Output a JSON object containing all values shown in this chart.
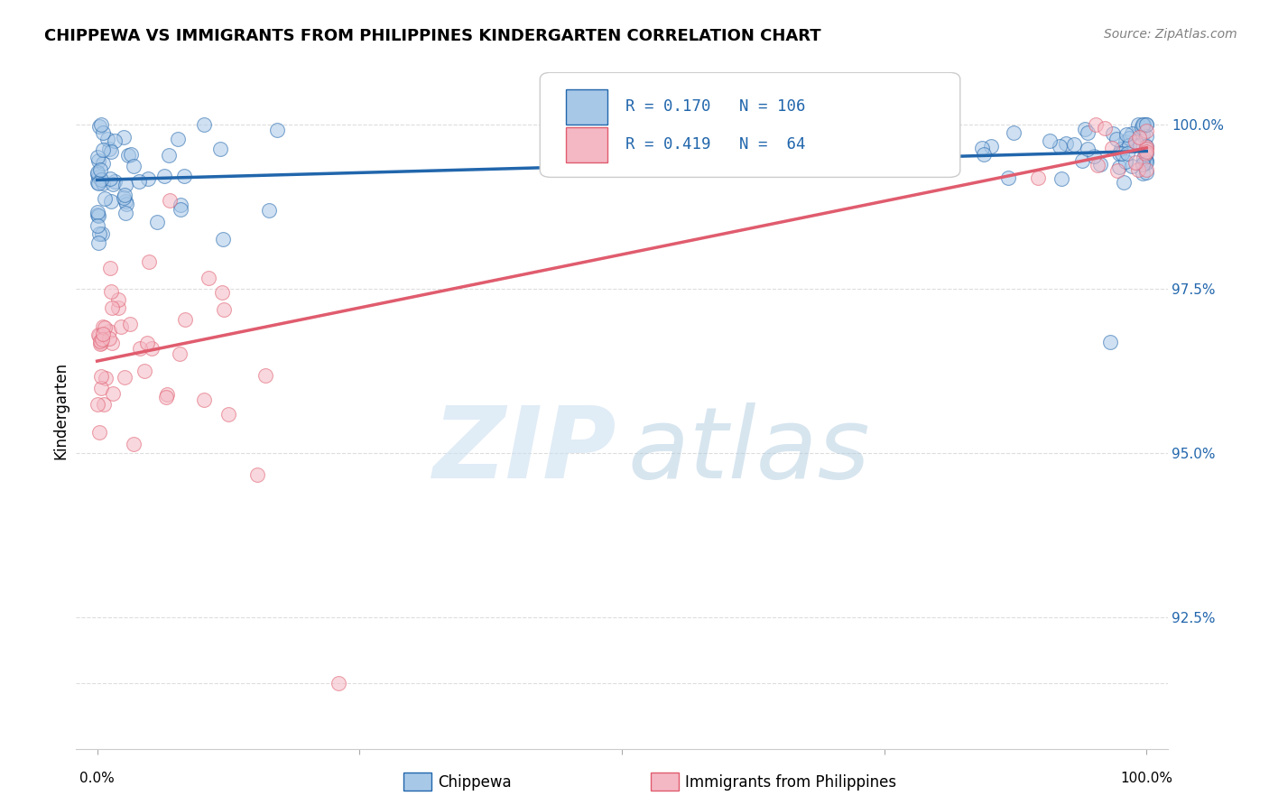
{
  "title": "CHIPPEWA VS IMMIGRANTS FROM PHILIPPINES KINDERGARTEN CORRELATION CHART",
  "source": "Source: ZipAtlas.com",
  "ylabel": "Kindergarten",
  "y_range": [
    90.5,
    100.8
  ],
  "x_range": [
    -0.02,
    1.02
  ],
  "chippewa_R": 0.17,
  "chippewa_N": 106,
  "philippines_R": 0.419,
  "philippines_N": 64,
  "blue_fill": "#a8c8e8",
  "blue_edge": "#2166ac",
  "pink_fill": "#f4b8c4",
  "pink_edge": "#e05c6e",
  "blue_line": "#2166ac",
  "pink_line": "#e05c6e",
  "background_color": "#ffffff",
  "grid_color": "#dddddd",
  "yticks": [
    92.5,
    95.0,
    97.5,
    100.0
  ],
  "ytick_labels": [
    "92.5%",
    "95.0%",
    "97.5%",
    "100.0%"
  ],
  "extra_gridline": 91.5
}
